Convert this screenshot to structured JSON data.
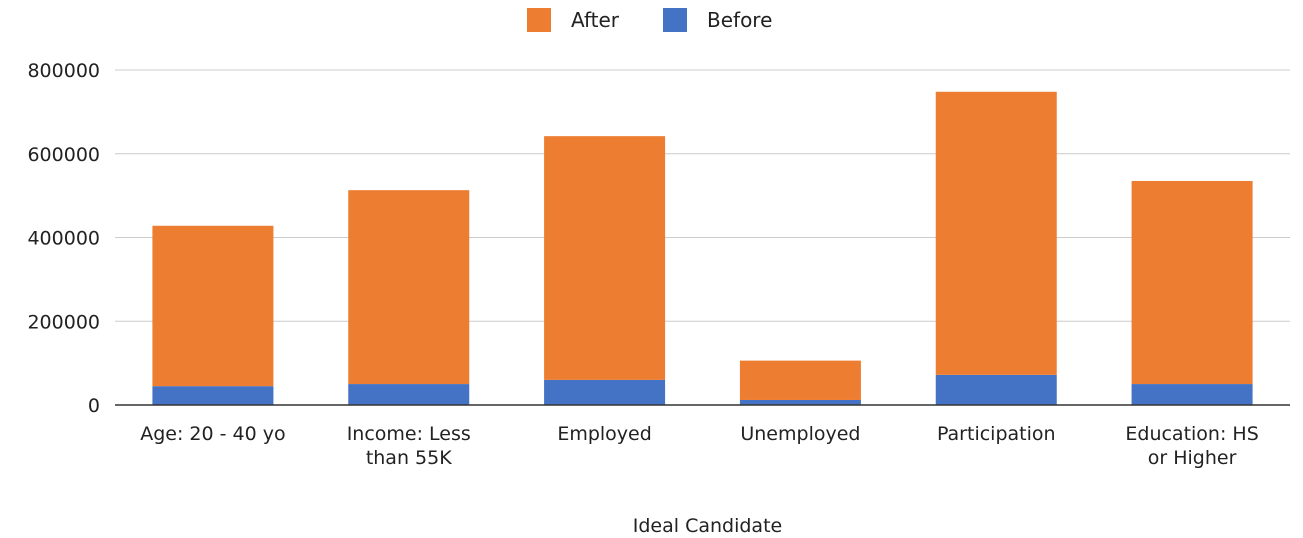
{
  "chart_data": {
    "type": "bar",
    "stacked": true,
    "xlabel": "Ideal Candidate",
    "ylabel": "",
    "categories": [
      [
        "Age: 20 - 40 yo"
      ],
      [
        "Income: Less",
        "than 55K"
      ],
      [
        "Employed"
      ],
      [
        "Unemployed"
      ],
      [
        "Participation"
      ],
      [
        "Education: HS",
        "or Higher"
      ]
    ],
    "series": [
      {
        "name": "Before",
        "color": "#4472c4",
        "values": [
          45000,
          50000,
          60000,
          12000,
          72000,
          50000
        ]
      },
      {
        "name": "After",
        "color": "#ed7d31",
        "values": [
          383000,
          463000,
          582000,
          94000,
          676000,
          485000
        ]
      }
    ],
    "legend_order": [
      "After",
      "Before"
    ],
    "legend_position": "top",
    "ylim": [
      0,
      800000
    ],
    "yticks": [
      "0",
      "200000",
      "400000",
      "600000",
      "800000"
    ],
    "ytick_values": [
      0,
      200000,
      400000,
      600000,
      800000
    ],
    "grid": true
  }
}
